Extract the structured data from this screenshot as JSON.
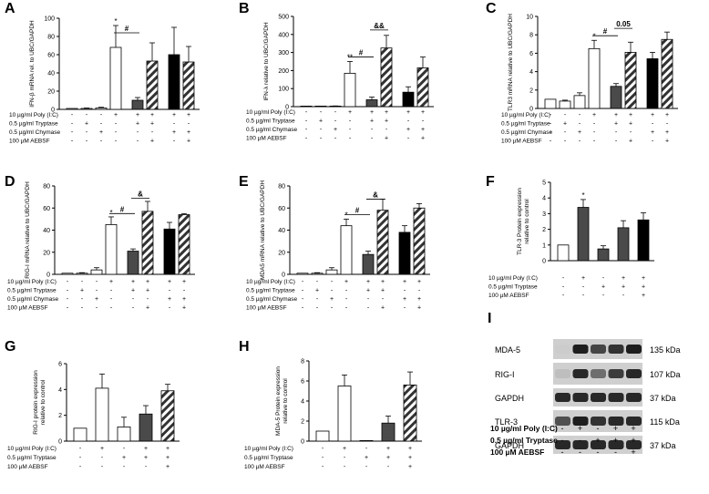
{
  "chart_data": [
    {
      "panel": "A",
      "type": "bar",
      "ylabel": "IFN-β mRNA rel. to UBC/GAPDH",
      "ylim": [
        0,
        100
      ],
      "yticks": [
        0,
        20,
        40,
        60,
        80,
        100
      ],
      "values": [
        1,
        1,
        1.5,
        68,
        10,
        53,
        60,
        52
      ],
      "errors": [
        0,
        0.5,
        0.8,
        24,
        3,
        20,
        30,
        17
      ],
      "fills": [
        "white",
        "white",
        "white",
        "white",
        "dark",
        "stripe",
        "black",
        "stripe"
      ],
      "sig": [
        {
          "bar": 3,
          "text": "*"
        }
      ],
      "brackets": [
        {
          "from": 3,
          "to": 4,
          "y": 84,
          "label": "#"
        }
      ],
      "rows": [
        {
          "label": "10 µg/ml Poly (I:C)",
          "marks": [
            "-",
            "-",
            "-",
            "+",
            "+",
            "+",
            "+",
            "+"
          ]
        },
        {
          "label": "0.5 µg/ml Tryptase",
          "marks": [
            "-",
            "+",
            "-",
            "-",
            "+",
            "+",
            "-",
            "-"
          ]
        },
        {
          "label": "0.5 µg/ml Chymase",
          "marks": [
            "-",
            "-",
            "+",
            "-",
            "-",
            "-",
            "+",
            "+"
          ]
        },
        {
          "label": "100 µM AEBSF",
          "marks": [
            "-",
            "-",
            "-",
            "-",
            "-",
            "+",
            "-",
            "+"
          ]
        }
      ]
    },
    {
      "panel": "B",
      "type": "bar",
      "ylabel": "IFN-λ relative to UBC/GAPDH",
      "ylim": [
        0,
        500
      ],
      "yticks": [
        0,
        100,
        200,
        300,
        400,
        500
      ],
      "values": [
        1,
        2,
        3,
        185,
        38,
        325,
        80,
        215
      ],
      "errors": [
        0,
        1,
        1,
        65,
        15,
        70,
        30,
        60
      ],
      "fills": [
        "white",
        "white",
        "white",
        "white",
        "dark",
        "stripe",
        "black",
        "stripe"
      ],
      "sig": [
        {
          "bar": 3,
          "text": "**"
        }
      ],
      "brackets": [
        {
          "from": 3,
          "to": 4,
          "y": 275,
          "label": "#"
        },
        {
          "from": 4,
          "to": 5,
          "y": 425,
          "label": "&&"
        }
      ],
      "rows": [
        {
          "label": "10 µg/ml Poly (I:C)",
          "marks": [
            "-",
            "-",
            "-",
            "+",
            "+",
            "+",
            "+",
            "+"
          ]
        },
        {
          "label": "0.5 µg/ml Tryptase",
          "marks": [
            "-",
            "+",
            "-",
            "-",
            "+",
            "+",
            "-",
            "-"
          ]
        },
        {
          "label": "0.5 µg/ml Chymase",
          "marks": [
            "-",
            "-",
            "+",
            "-",
            "-",
            "-",
            "+",
            "+"
          ]
        },
        {
          "label": "100 µM AEBSF",
          "marks": [
            "-",
            "-",
            "-",
            "-",
            "-",
            "+",
            "-",
            "+"
          ]
        }
      ]
    },
    {
      "panel": "C",
      "type": "bar",
      "ylabel": "TLR3 mRNA relative to UBC/GAPDH",
      "ylim": [
        0,
        10
      ],
      "yticks": [
        0,
        2,
        4,
        6,
        8,
        10
      ],
      "values": [
        1,
        0.8,
        1.4,
        6.5,
        2.4,
        6.1,
        5.4,
        7.5
      ],
      "errors": [
        0,
        0.1,
        0.3,
        0.9,
        0.3,
        1.1,
        0.7,
        0.8
      ],
      "fills": [
        "white",
        "white",
        "white",
        "white",
        "dark",
        "stripe",
        "black",
        "stripe"
      ],
      "sig": [
        {
          "bar": 3,
          "text": "*"
        }
      ],
      "brackets": [
        {
          "from": 3,
          "to": 4,
          "y": 7.9,
          "label": "#"
        },
        {
          "from": 4,
          "to": 5,
          "y": 8.7,
          "label": "0.05"
        }
      ],
      "rows": [
        {
          "label": "10 µg/ml Poly (I:C)",
          "marks": [
            "-",
            "-",
            "-",
            "+",
            "+",
            "+",
            "+",
            "+"
          ]
        },
        {
          "label": "0.5 µg/ml Tryptase",
          "marks": [
            "-",
            "+",
            "-",
            "-",
            "+",
            "+",
            "-",
            "-"
          ]
        },
        {
          "label": "0.5 µg/ml Chymase",
          "marks": [
            "-",
            "-",
            "+",
            "-",
            "-",
            "-",
            "+",
            "+"
          ]
        },
        {
          "label": "100 µM AEBSF",
          "marks": [
            "-",
            "-",
            "-",
            "-",
            "-",
            "+",
            "-",
            "+"
          ]
        }
      ]
    },
    {
      "panel": "D",
      "type": "bar",
      "ylabel": "RIG-I mRNA relative to UBC/GAPDH",
      "ylim": [
        0,
        80
      ],
      "yticks": [
        0,
        20,
        40,
        60,
        80
      ],
      "values": [
        1,
        1,
        4,
        45,
        21,
        57,
        41,
        54
      ],
      "errors": [
        0,
        0.5,
        2,
        7,
        2,
        9,
        6,
        1
      ],
      "fills": [
        "white",
        "white",
        "white",
        "white",
        "dark",
        "stripe",
        "black",
        "stripe"
      ],
      "sig": [
        {
          "bar": 3,
          "text": "*"
        }
      ],
      "brackets": [
        {
          "from": 3,
          "to": 4,
          "y": 55,
          "label": "#"
        },
        {
          "from": 4,
          "to": 5,
          "y": 69,
          "label": "&"
        }
      ],
      "rows": [
        {
          "label": "10 µg/ml Poly (I:C)",
          "marks": [
            "-",
            "-",
            "-",
            "+",
            "+",
            "+",
            "+",
            "+"
          ]
        },
        {
          "label": "0.5 µg/ml Tryptase",
          "marks": [
            "-",
            "+",
            "-",
            "-",
            "+",
            "+",
            "-",
            "-"
          ]
        },
        {
          "label": "0.5 µg/ml Chymase",
          "marks": [
            "-",
            "-",
            "+",
            "-",
            "-",
            "-",
            "+",
            "+"
          ]
        },
        {
          "label": "100 µM AEBSF",
          "marks": [
            "-",
            "-",
            "-",
            "-",
            "-",
            "+",
            "-",
            "+"
          ]
        }
      ]
    },
    {
      "panel": "E",
      "type": "bar",
      "ylabel": "MDA5 mRNA relative to UBC/GAPDH",
      "ylim": [
        0,
        80
      ],
      "yticks": [
        0,
        20,
        40,
        60,
        80
      ],
      "values": [
        1,
        1,
        4,
        44,
        18,
        58,
        38,
        60
      ],
      "errors": [
        0,
        0.5,
        2,
        6,
        3,
        10,
        6,
        4
      ],
      "fills": [
        "white",
        "white",
        "white",
        "white",
        "dark",
        "stripe",
        "black",
        "stripe"
      ],
      "sig": [
        {
          "bar": 3,
          "text": "*"
        }
      ],
      "brackets": [
        {
          "from": 3,
          "to": 4,
          "y": 54,
          "label": "#"
        },
        {
          "from": 4,
          "to": 5,
          "y": 68,
          "label": "&"
        }
      ],
      "rows": [
        {
          "label": "10 µg/ml Poly (I:C)",
          "marks": [
            "-",
            "-",
            "-",
            "+",
            "+",
            "+",
            "+",
            "+"
          ]
        },
        {
          "label": "0.5 µg/ml Tryptase",
          "marks": [
            "-",
            "+",
            "-",
            "-",
            "+",
            "+",
            "-",
            "-"
          ]
        },
        {
          "label": "0.5 µg/ml Chymase",
          "marks": [
            "-",
            "-",
            "+",
            "-",
            "-",
            "-",
            "+",
            "+"
          ]
        },
        {
          "label": "100 µM AEBSF",
          "marks": [
            "-",
            "-",
            "-",
            "-",
            "-",
            "+",
            "-",
            "+"
          ]
        }
      ]
    },
    {
      "panel": "F",
      "type": "bar",
      "ylabel": "TLR-3 Protein expression relative to control",
      "ylim": [
        0,
        5
      ],
      "yticks": [
        0,
        1,
        2,
        3,
        4,
        5
      ],
      "values": [
        1,
        3.4,
        0.75,
        2.1,
        2.6
      ],
      "errors": [
        0,
        0.5,
        0.2,
        0.45,
        0.45
      ],
      "fills": [
        "white",
        "dark",
        "dark",
        "dark",
        "black"
      ],
      "sig": [
        {
          "bar": 1,
          "text": "*"
        }
      ],
      "brackets": [],
      "rows": [
        {
          "label": "10 µg/ml Poly (I:C)",
          "marks": [
            "-",
            "+",
            "-",
            "+",
            "+"
          ]
        },
        {
          "label": "0.5 µg/ml Tryptase",
          "marks": [
            "-",
            "-",
            "+",
            "+",
            "+"
          ]
        },
        {
          "label": "100 µM AEBSF",
          "marks": [
            "-",
            "-",
            "-",
            "-",
            "+"
          ]
        }
      ]
    },
    {
      "panel": "G",
      "type": "bar",
      "ylabel": "RIG-I protein expression relative to control",
      "ylim": [
        0,
        6
      ],
      "yticks": [
        0,
        2,
        4,
        6
      ],
      "values": [
        1,
        4.1,
        1.1,
        2.1,
        3.9
      ],
      "errors": [
        0,
        1.1,
        0.75,
        0.65,
        0.5
      ],
      "fills": [
        "white",
        "white",
        "white",
        "dark",
        "stripe"
      ],
      "sig": [],
      "brackets": [],
      "rows": [
        {
          "label": "10 µg/ml Poly (I:C)",
          "marks": [
            "-",
            "+",
            "-",
            "+",
            "+"
          ]
        },
        {
          "label": "0.5 µg/ml Tryptase",
          "marks": [
            "-",
            "-",
            "+",
            "+",
            "+"
          ]
        },
        {
          "label": "100 µM AEBSF",
          "marks": [
            "-",
            "-",
            "-",
            "-",
            "+"
          ]
        }
      ]
    },
    {
      "panel": "H",
      "type": "bar",
      "ylabel": "MDA-5 Protein expression relative to control",
      "ylim": [
        0,
        8
      ],
      "yticks": [
        0,
        2,
        4,
        6,
        8
      ],
      "values": [
        1,
        5.5,
        0.05,
        1.8,
        5.6
      ],
      "errors": [
        0,
        1.1,
        0,
        0.7,
        1.3
      ],
      "fills": [
        "white",
        "white",
        "white",
        "dark",
        "stripe"
      ],
      "sig": [],
      "brackets": [],
      "rows": [
        {
          "label": "10 µg/ml Poly (I:C)",
          "marks": [
            "-",
            "+",
            "-",
            "+",
            "+"
          ]
        },
        {
          "label": "0.5 µg/ml Tryptase",
          "marks": [
            "-",
            "-",
            "+",
            "+",
            "+"
          ]
        },
        {
          "label": "100 µM AEBSF",
          "marks": [
            "-",
            "-",
            "-",
            "-",
            "+"
          ]
        }
      ]
    }
  ],
  "blot": {
    "panel": "I",
    "bands": [
      {
        "name": "MDA-5",
        "kda": "135 kDa"
      },
      {
        "name": "RIG-I",
        "kda": "107 kDa"
      },
      {
        "name": "GAPDH",
        "kda": "37 kDa"
      },
      {
        "name": "TLR-3",
        "kda": "115 kDa"
      },
      {
        "name": "GAPDH",
        "kda": "37 kDa"
      }
    ],
    "rows": [
      {
        "label": "10 µg/ml Poly (I:C)",
        "marks": [
          "-",
          "+",
          "-",
          "+",
          "+"
        ]
      },
      {
        "label": "0.5 µg/ml Tryptase",
        "marks": [
          "-",
          "-",
          "+",
          "+",
          "+"
        ]
      },
      {
        "label": "100 µM AEBSF",
        "marks": [
          "-",
          "-",
          "-",
          "-",
          "+"
        ]
      }
    ],
    "intensity": [
      [
        0.08,
        0.95,
        0.75,
        0.85,
        0.95
      ],
      [
        0.15,
        0.9,
        0.55,
        0.8,
        0.9
      ],
      [
        0.9,
        0.9,
        0.9,
        0.9,
        0.9
      ],
      [
        0.7,
        0.95,
        0.85,
        0.9,
        0.9
      ],
      [
        0.9,
        0.9,
        0.9,
        0.9,
        0.9
      ]
    ]
  }
}
